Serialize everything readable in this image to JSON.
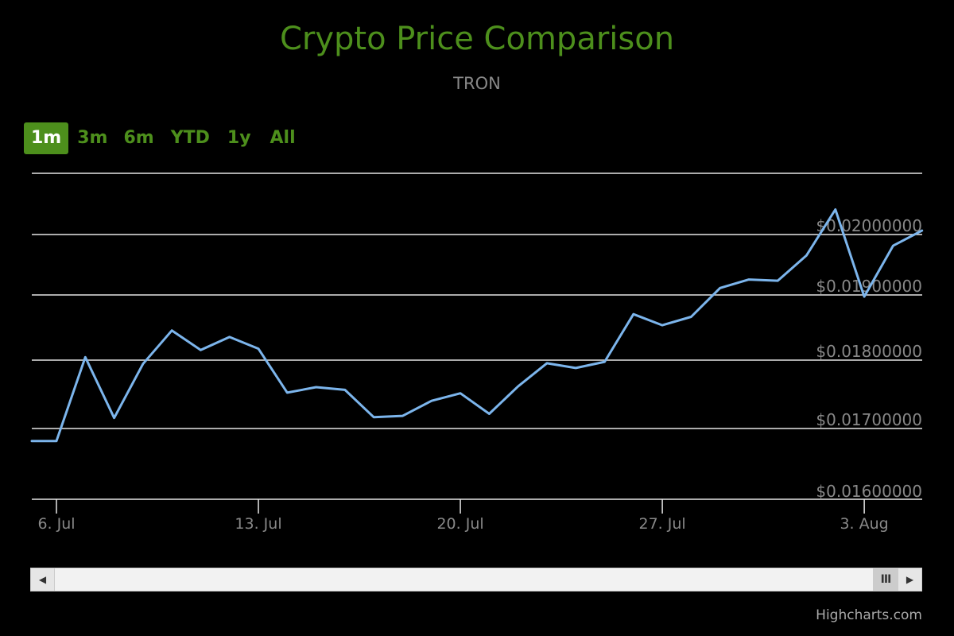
{
  "title": "Crypto Price Comparison",
  "subtitle": "TRON",
  "range_selector": {
    "buttons": [
      "1m",
      "3m",
      "6m",
      "YTD",
      "1y",
      "All"
    ],
    "selected": "1m"
  },
  "navigator": {
    "left_arrow": "◀",
    "right_arrow": "▶",
    "thumb_glyph": "III"
  },
  "credits": "Highcharts.com",
  "colors": {
    "title": "#4d8f1c",
    "series": "#7cb5ec",
    "grid": "#e6e6e6",
    "label": "#888888",
    "background": "#000000"
  },
  "chart_data": {
    "type": "line",
    "title": "Crypto Price Comparison",
    "subtitle": "TRON",
    "x_tick_labels": [
      "6. Jul",
      "13. Jul",
      "20. Jul",
      "27. Jul",
      "3. Aug"
    ],
    "x_ticks": [
      "2018-07-06",
      "2018-07-13",
      "2018-07-20",
      "2018-07-27",
      "2018-08-03"
    ],
    "y_tick_labels": [
      "$0.01600000",
      "$0.01700000",
      "$0.01800000",
      "$0.01900000",
      "$0.02000000"
    ],
    "y_ticks": [
      0.016,
      0.017,
      0.018,
      0.019,
      0.02
    ],
    "ylim": [
      0.016,
      0.0205
    ],
    "grid": true,
    "legend": "none",
    "series": [
      {
        "x": [
          "2018-07-05",
          "2018-07-06",
          "2018-07-07",
          "2018-07-08",
          "2018-07-09",
          "2018-07-10",
          "2018-07-11",
          "2018-07-12",
          "2018-07-13",
          "2018-07-14",
          "2018-07-15",
          "2018-07-16",
          "2018-07-17",
          "2018-07-18",
          "2018-07-19",
          "2018-07-20",
          "2018-07-21",
          "2018-07-22",
          "2018-07-23",
          "2018-07-24",
          "2018-07-25",
          "2018-07-26",
          "2018-07-27",
          "2018-07-28",
          "2018-07-29",
          "2018-07-30",
          "2018-07-31",
          "2018-08-01",
          "2018-08-02",
          "2018-08-03",
          "2018-08-04",
          "2018-08-05"
        ],
        "values": [
          0.016825,
          0.016825,
          0.018045,
          0.017155,
          0.017945,
          0.018455,
          0.018155,
          0.018355,
          0.018175,
          0.017525,
          0.017605,
          0.017565,
          0.017165,
          0.017185,
          0.017405,
          0.017515,
          0.017215,
          0.017615,
          0.017955,
          0.017885,
          0.017975,
          0.018705,
          0.018535,
          0.018665,
          0.019115,
          0.019255,
          0.019235,
          0.019655,
          0.020415,
          0.018975,
          0.019815,
          0.020065
        ]
      }
    ]
  }
}
